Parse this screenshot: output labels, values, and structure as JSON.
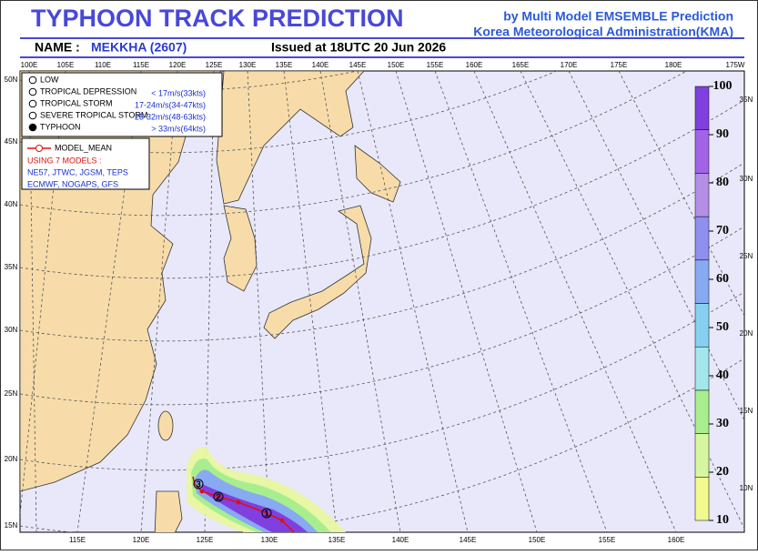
{
  "header": {
    "title": "TYPHOON  TRACK  PREDICTION",
    "subtitle": "by Multi Model EMSEMBLE Prediction",
    "agency": "Korea Meteorological Administration(KMA)",
    "name_label": "NAME :",
    "name": "MEKKHA (2607)",
    "issued": "Issued at  18UTC 20 Jun 2026"
  },
  "map": {
    "top_lon": [
      "100E",
      "105E",
      "110E",
      "115E",
      "120E",
      "125E",
      "130E",
      "135E",
      "140E",
      "145E",
      "150E",
      "155E",
      "160E",
      "165E",
      "170E",
      "175E",
      "180E",
      "175W"
    ],
    "bottom_lon": [
      "115E",
      "120E",
      "125E",
      "130E",
      "135E",
      "140E",
      "145E",
      "150E",
      "155E",
      "160E"
    ],
    "left_lat": [
      "50N",
      "45N",
      "40N",
      "35N",
      "30N",
      "25N",
      "20N",
      "15N"
    ],
    "right_lat": [
      "35N",
      "30N",
      "25N",
      "20N",
      "15N",
      "10N"
    ]
  },
  "legend": {
    "intensity": [
      {
        "label": "LOW"
      },
      {
        "label": "TROPICAL DEPRESSION",
        "range": "< 17m/s(33kts)"
      },
      {
        "label": "TROPICAL STORM",
        "range": "17-24m/s(34-47kts)"
      },
      {
        "label": "SEVERE TROPICAL STORM",
        "range": "25-32m/s(48-63kts)"
      },
      {
        "label": "TYPHOON",
        "range": "> 33m/s(64kts)"
      }
    ],
    "model_mean": "MODEL_MEAN",
    "models_title": "USING 7 MODELS :",
    "models": [
      "NE57, JTWC, JGSM, TEPS",
      "ECMWF, NOGAPS, GFS"
    ]
  },
  "track": {
    "labels": [
      "1",
      "2",
      "3"
    ]
  },
  "colorbar": {
    "ticks": [
      10,
      20,
      30,
      40,
      50,
      60,
      70,
      80,
      90,
      100
    ],
    "colors": [
      "#f2f98f",
      "#d6f7a0",
      "#a9ee8e",
      "#a3e7ea",
      "#86d1f2",
      "#87aaf2",
      "#8f8ff0",
      "#b38fe6",
      "#a363e8",
      "#8040e0"
    ]
  }
}
